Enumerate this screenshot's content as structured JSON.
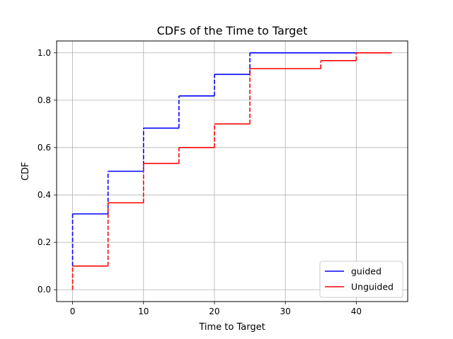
{
  "chart_data": {
    "type": "line",
    "step": true,
    "title": "CDFs of the Time to Target",
    "xlabel": "Time to Target",
    "ylabel": "CDF",
    "xlim": [
      -2.25,
      47.25
    ],
    "ylim": [
      -0.05,
      1.05
    ],
    "xticks": [
      0,
      10,
      20,
      30,
      40
    ],
    "yticks": [
      0.0,
      0.2,
      0.4,
      0.6,
      0.8,
      1.0
    ],
    "xtick_labels": [
      "0",
      "10",
      "20",
      "30",
      "40"
    ],
    "ytick_labels": [
      "0.0",
      "0.2",
      "0.4",
      "0.6",
      "0.8",
      "1.0"
    ],
    "grid": true,
    "legend_position": "lower-right",
    "series": [
      {
        "name": "guided",
        "color": "#0000ff",
        "points": [
          [
            0,
            0.1
          ],
          [
            0,
            0.32
          ],
          [
            5,
            0.32
          ],
          [
            5,
            0.5
          ],
          [
            10,
            0.5
          ],
          [
            10,
            0.682
          ],
          [
            15,
            0.682
          ],
          [
            15,
            0.818
          ],
          [
            20,
            0.818
          ],
          [
            20,
            0.909
          ],
          [
            25,
            0.909
          ],
          [
            25,
            1.0
          ],
          [
            40,
            1.0
          ]
        ]
      },
      {
        "name": "Unguided",
        "color": "#ff0000",
        "points": [
          [
            0,
            0.0
          ],
          [
            0,
            0.1
          ],
          [
            5,
            0.1
          ],
          [
            5,
            0.367
          ],
          [
            10,
            0.367
          ],
          [
            10,
            0.533
          ],
          [
            15,
            0.533
          ],
          [
            15,
            0.6
          ],
          [
            20,
            0.6
          ],
          [
            20,
            0.7
          ],
          [
            25,
            0.7
          ],
          [
            25,
            0.933
          ],
          [
            35,
            0.933
          ],
          [
            35,
            0.967
          ],
          [
            40,
            0.967
          ],
          [
            40,
            1.0
          ],
          [
            45,
            1.0
          ]
        ]
      }
    ]
  }
}
